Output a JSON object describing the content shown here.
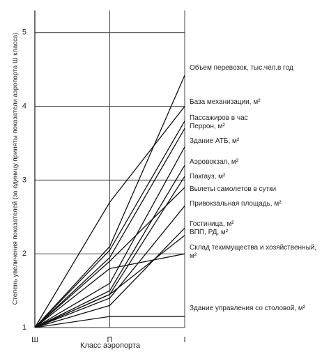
{
  "chart_data": {
    "type": "line",
    "y_label": "Степень увеличения показателей (за единицу приняты показатели аэропорта Ш класса)",
    "x_label": "Класс аэропорта",
    "categories": [
      "Ш",
      "П",
      "I"
    ],
    "ylim": [
      1,
      5.3
    ],
    "yticks": [
      1,
      2,
      3,
      4,
      5
    ],
    "grid": true,
    "series": [
      {
        "name": "Объем перевозок, тыс.чел.в год",
        "color": "#111111",
        "values": [
          1,
          2.1,
          4.42
        ]
      },
      {
        "name": "База механизации, м²",
        "color": "#111111",
        "values": [
          1,
          2.7,
          4.0
        ]
      },
      {
        "name": "Пассажиров в час",
        "color": "#111111",
        "values": [
          1,
          2.05,
          3.8
        ]
      },
      {
        "name": "Перрон, м²",
        "color": "#111111",
        "values": [
          1,
          1.95,
          3.7
        ]
      },
      {
        "name": "Здание АТБ, м²",
        "color": "#111111",
        "values": [
          1,
          1.6,
          3.45
        ]
      },
      {
        "name": "Аэровокзал, м²",
        "color": "#111111",
        "values": [
          1,
          1.5,
          3.2
        ]
      },
      {
        "name": "Пакгауз, м²",
        "color": "#111111",
        "values": [
          1,
          1.45,
          3.05
        ]
      },
      {
        "name": "Вылеты самолетов в сутки",
        "color": "#111111",
        "values": [
          1,
          1.9,
          2.9
        ]
      },
      {
        "name": "Привокзальная площадь, м²",
        "color": "#111111",
        "values": [
          1,
          1.4,
          2.65
        ]
      },
      {
        "name": "Гостиница, м²",
        "color": "#111111",
        "values": [
          1,
          1.3,
          2.35
        ]
      },
      {
        "name": "ВПП, РД, м²",
        "color": "#111111",
        "values": [
          1,
          1.45,
          2.25
        ]
      },
      {
        "name": "Склад техимущества и хозяйственный, м²",
        "color": "#111111",
        "values": [
          1,
          1.8,
          2.0
        ]
      },
      {
        "name": "Здание управления со столовой, м²",
        "color": "#111111",
        "values": [
          1,
          1.15,
          1.15
        ]
      }
    ]
  }
}
